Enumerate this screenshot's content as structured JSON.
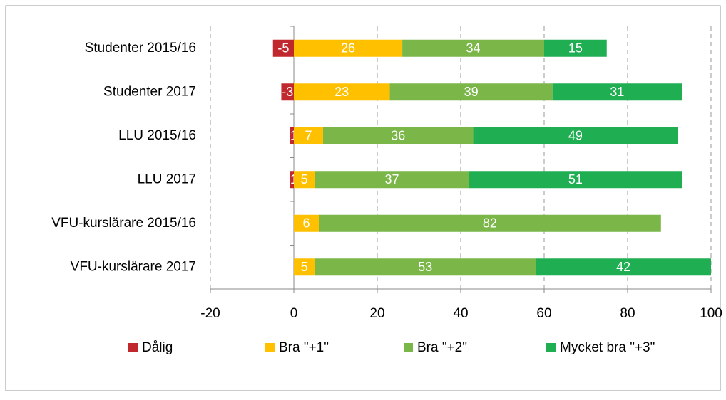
{
  "chart_data": {
    "type": "stacked_barh",
    "categories": [
      "Studenter 2015/16",
      "Studenter 2017",
      "LLU 2015/16",
      "LLU 2017",
      "VFU-kurslärare 2015/16",
      "VFU-kurslärare 2017"
    ],
    "series": [
      {
        "name": "Dålig",
        "color": "#c0282d",
        "values": [
          -5,
          -3,
          -1,
          -1,
          null,
          null
        ]
      },
      {
        "name": "Bra \"+1\"",
        "color": "#ffc000",
        "values": [
          26,
          23,
          7,
          5,
          6,
          5
        ]
      },
      {
        "name": "Bra \"+2\"",
        "color": "#7ab648",
        "values": [
          34,
          39,
          36,
          37,
          82,
          53
        ]
      },
      {
        "name": "Mycket bra \"+3\"",
        "color": "#1fae52",
        "values": [
          15,
          31,
          49,
          51,
          null,
          42
        ]
      }
    ],
    "xlim": [
      -20,
      100
    ],
    "xticks": [
      -20,
      0,
      20,
      40,
      60,
      80,
      100
    ],
    "grid": true,
    "legend": "bottom"
  }
}
